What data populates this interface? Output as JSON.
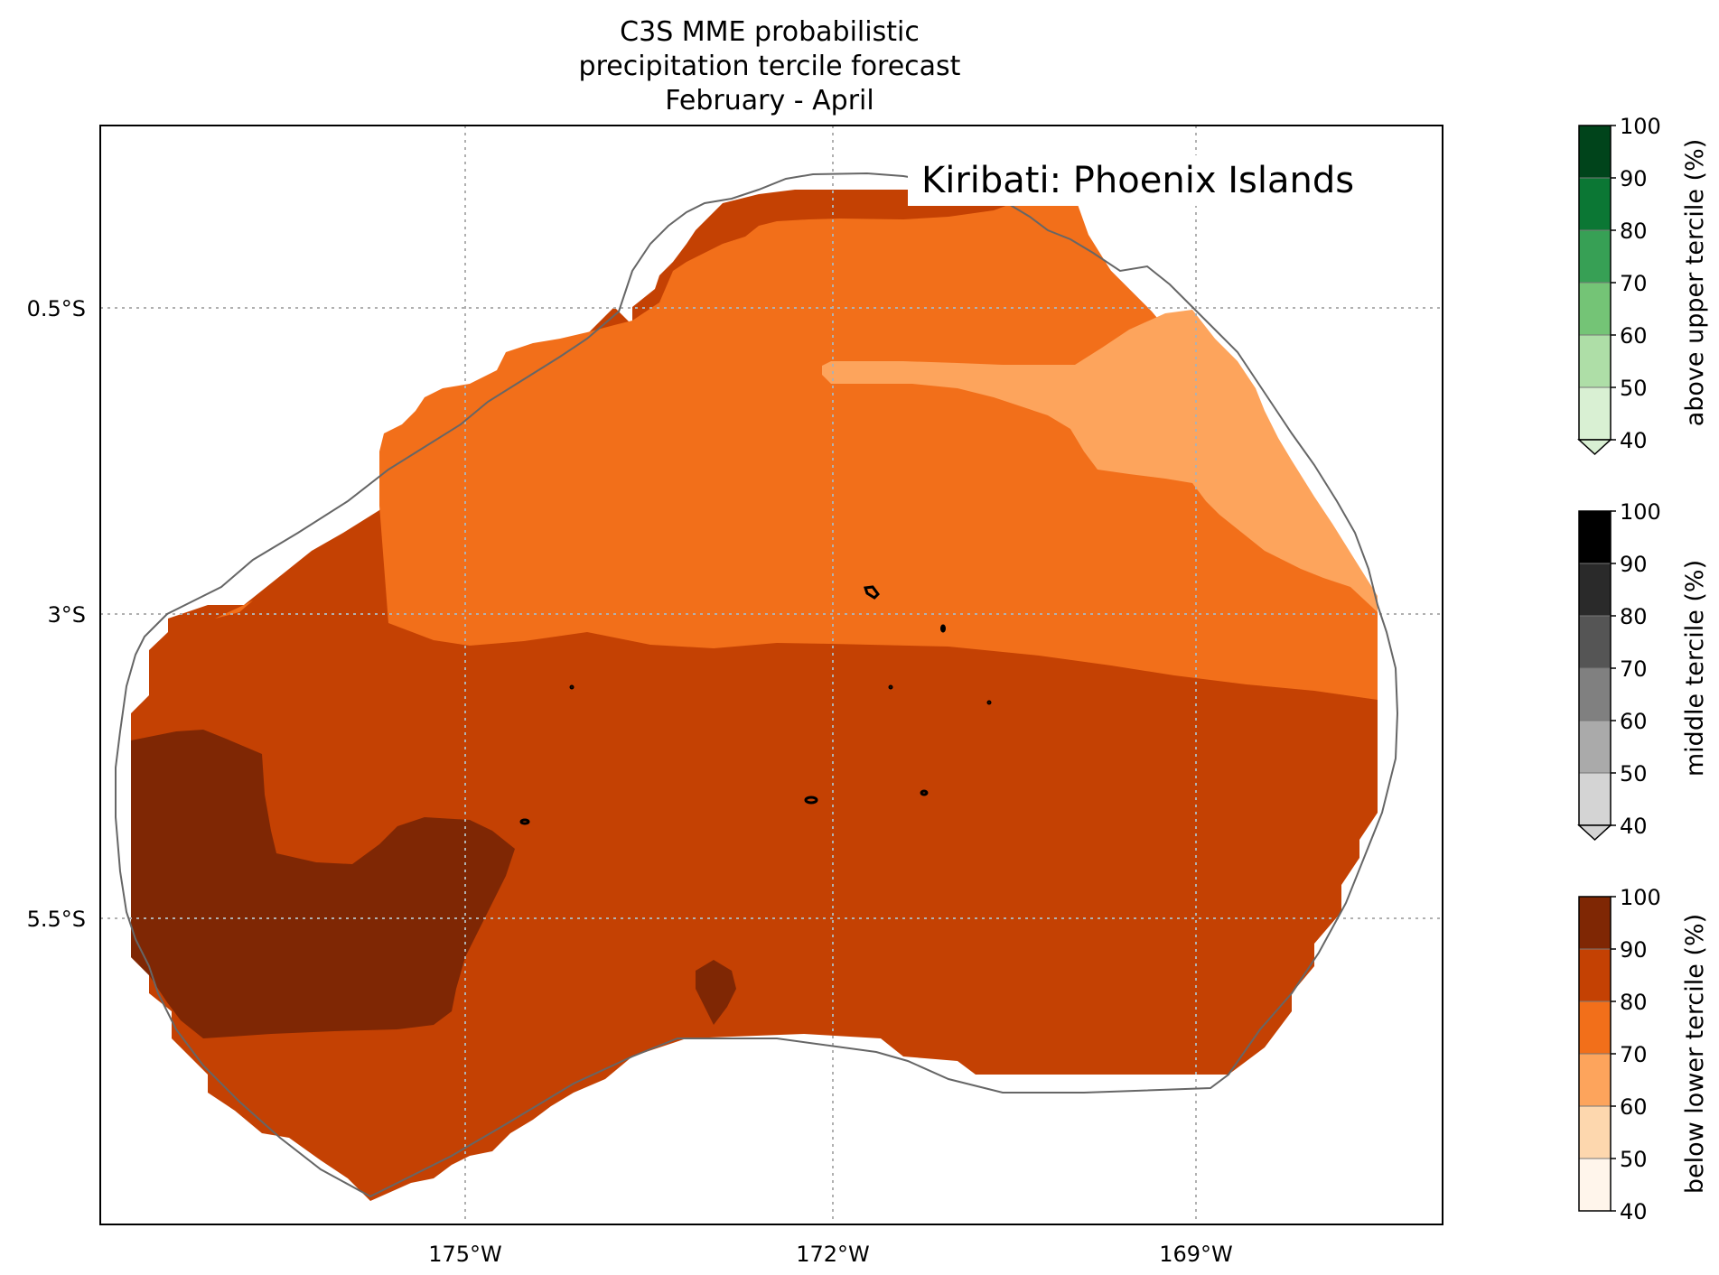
{
  "title": {
    "line1": "C3S MME probabilistic",
    "line2": "precipitation tercile forecast",
    "line3": "February - April"
  },
  "region_label": "Kiribati: Phoenix Islands",
  "axes": {
    "lon_ticks": [
      "175°W",
      "172°W",
      "169°W"
    ],
    "lat_ticks": [
      "0.5°S",
      "3°S",
      "5.5°S"
    ],
    "gridlines": true
  },
  "colors": {
    "below_90_100": "#7f2704",
    "below_80_90": "#c44103",
    "below_70_80": "#f26f1a",
    "below_60_70": "#fda45c",
    "below_50_60": "#fdd7ae",
    "below_40_50": "#fff5eb",
    "outline": "#666666",
    "island": "#000000"
  },
  "colorbars": [
    {
      "label": "above upper tercile (%)",
      "ticks": [
        "100",
        "90",
        "80",
        "70",
        "60",
        "50",
        "40"
      ],
      "colors": [
        "#00441b",
        "#0b7734",
        "#37a055",
        "#74c476",
        "#aedea7",
        "#d9f0d3"
      ],
      "extend": "min"
    },
    {
      "label": "middle tercile (%)",
      "ticks": [
        "100",
        "90",
        "80",
        "70",
        "60",
        "50",
        "40"
      ],
      "colors": [
        "#000000",
        "#2a2a2a",
        "#555555",
        "#808080",
        "#aaaaaa",
        "#d4d4d4"
      ],
      "extend": "min"
    },
    {
      "label": "below lower tercile (%)",
      "ticks": [
        "100",
        "90",
        "80",
        "70",
        "60",
        "50",
        "40"
      ],
      "colors": [
        "#7f2704",
        "#c44103",
        "#f26f1a",
        "#fda45c",
        "#fdd7ae",
        "#fff5eb"
      ],
      "extend": "none"
    }
  ]
}
